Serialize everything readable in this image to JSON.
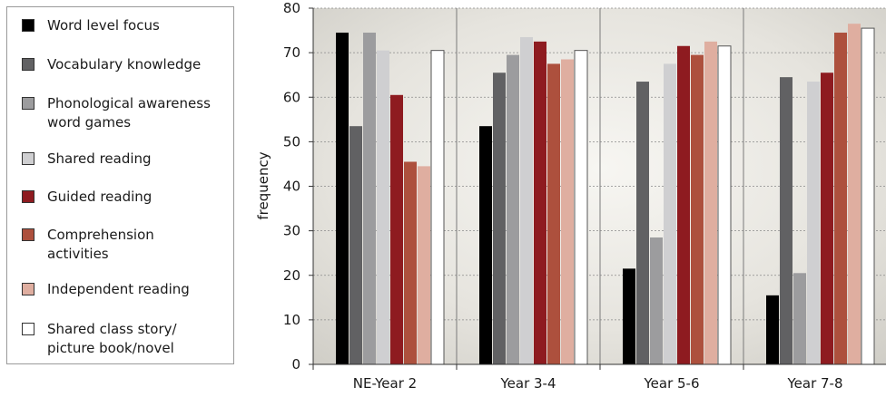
{
  "chart_data": {
    "type": "bar",
    "ylabel": "frequency",
    "xlabel": "",
    "ylim": [
      0,
      80
    ],
    "yticks": [
      0,
      10,
      20,
      30,
      40,
      50,
      60,
      70,
      80
    ],
    "grid": "horizontal dashed",
    "legend_position": "left",
    "categories": [
      "NE-Year 2",
      "Year 3-4",
      "Year 5-6",
      "Year 7-8"
    ],
    "series": [
      {
        "name": "Word level focus",
        "color": "#000000",
        "values": [
          74.5,
          53.5,
          21.5,
          15.5
        ]
      },
      {
        "name": "Vocabulary knowledge",
        "color": "#616163",
        "values": [
          53.5,
          65.5,
          63.5,
          64.5
        ]
      },
      {
        "name": "Phonological awareness word games",
        "color": "#9c9c9e",
        "values": [
          74.5,
          69.5,
          28.5,
          20.5
        ]
      },
      {
        "name": "Shared reading",
        "color": "#cfcfd1",
        "values": [
          70.5,
          73.5,
          67.5,
          63.5
        ]
      },
      {
        "name": "Guided reading",
        "color": "#8e1b20",
        "values": [
          60.5,
          72.5,
          71.5,
          65.5
        ]
      },
      {
        "name": "Comprehension activities",
        "color": "#ad503d",
        "values": [
          45.5,
          67.5,
          69.5,
          74.5
        ]
      },
      {
        "name": "Independent reading",
        "color": "#dfaea0",
        "values": [
          44.5,
          68.5,
          72.5,
          76.5
        ]
      },
      {
        "name": "Shared class story/ picture book/novel",
        "color": "#ffffff",
        "values": [
          70.5,
          70.5,
          71.5,
          75.5
        ]
      }
    ]
  },
  "legend": {
    "items": [
      {
        "lines": [
          "Word level focus"
        ]
      },
      {
        "lines": [
          "Vocabulary knowledge"
        ]
      },
      {
        "lines": [
          "Phonological awareness",
          "word games"
        ]
      },
      {
        "lines": [
          "Shared reading"
        ]
      },
      {
        "lines": [
          "Guided reading"
        ]
      },
      {
        "lines": [
          "Comprehension",
          "activities"
        ]
      },
      {
        "lines": [
          "Independent reading"
        ]
      },
      {
        "lines": [
          "Shared class story/",
          "picture book/novel"
        ]
      }
    ]
  }
}
